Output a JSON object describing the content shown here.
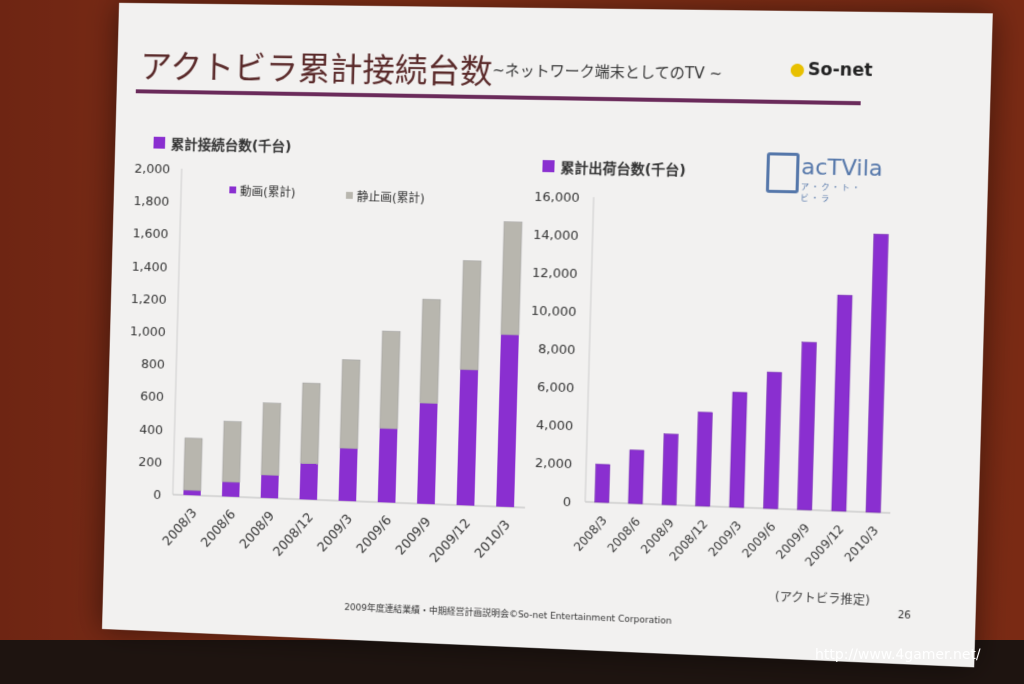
{
  "slide": {
    "title": "アクトビラ累計接続台数",
    "subtitle": "~ネットワーク端末としてのTV ~",
    "logo_text": "So-net",
    "brand_logo_text": "acTVila",
    "brand_logo_kana": "ア・ク・ト・ビ・ラ",
    "note": "(アクトビラ推定)",
    "footer": "2009年度連結業績・中期経営計画説明会©So-net Entertainment Corporation",
    "page_number": "26"
  },
  "watermark": "http://www.4gamer.net/",
  "colors": {
    "purple": "#8a2fd0",
    "gray": "#b8b6ae",
    "ink": "#333333"
  },
  "chart_data": [
    {
      "type": "bar",
      "stacked": true,
      "title": "累計接続台数(千台)",
      "categories": [
        "2008/3",
        "2008/6",
        "2008/9",
        "2008/12",
        "2009/3",
        "2009/6",
        "2009/9",
        "2009/12",
        "2010/3"
      ],
      "series": [
        {
          "name": "動画(累計)",
          "values": [
            30,
            90,
            140,
            220,
            320,
            450,
            610,
            820,
            1040
          ]
        },
        {
          "name": "静止画(累計)",
          "values": [
            320,
            370,
            440,
            490,
            540,
            590,
            630,
            660,
            680
          ]
        }
      ],
      "ylim": [
        0,
        2000
      ],
      "yticks": [
        "0",
        "200",
        "400",
        "600",
        "800",
        "1,000",
        "1,200",
        "1,400",
        "1,600",
        "1,800",
        "2,000"
      ],
      "legend": "top-left",
      "grid": false
    },
    {
      "type": "bar",
      "title": "累計出荷台数(千台)",
      "categories": [
        "2008/3",
        "2008/6",
        "2008/9",
        "2008/12",
        "2009/3",
        "2009/6",
        "2009/9",
        "2009/12",
        "2010/3"
      ],
      "series": [
        {
          "values": [
            2000,
            2800,
            3700,
            4900,
            6000,
            7100,
            8700,
            11200,
            14400
          ]
        }
      ],
      "ylim": [
        0,
        16000
      ],
      "yticks": [
        "0",
        "2,000",
        "4,000",
        "6,000",
        "8,000",
        "10,000",
        "12,000",
        "14,000",
        "16,000"
      ],
      "grid": false
    }
  ]
}
